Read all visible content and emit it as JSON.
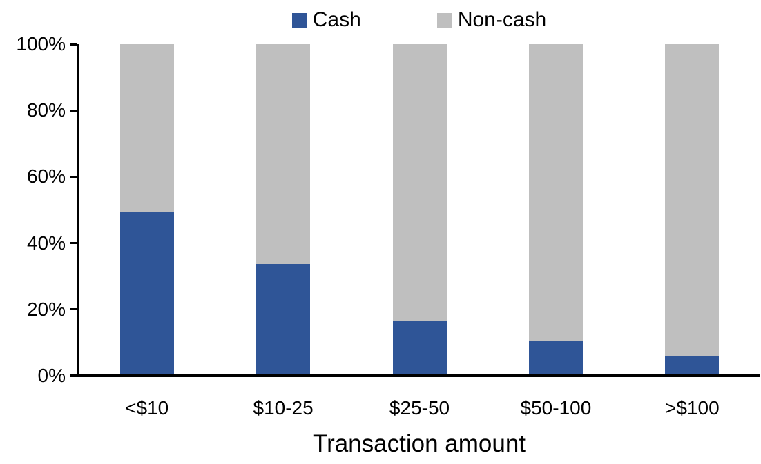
{
  "colors": {
    "cash": "#2F5597",
    "noncash": "#BFBFBF",
    "axis": "#000000",
    "background": "#FFFFFF",
    "text": "#000000"
  },
  "chart_data": {
    "type": "bar",
    "stacked": true,
    "orientation": "vertical",
    "title": "",
    "xlabel": "Transaction amount",
    "ylabel": "",
    "categories": [
      "<$10",
      "$10-25",
      "$25-50",
      "$50-100",
      ">$100"
    ],
    "series": [
      {
        "name": "Cash",
        "color": "#2F5597",
        "values": [
          49,
          33.5,
          16,
          10,
          5.5
        ]
      },
      {
        "name": "Non-cash",
        "color": "#BFBFBF",
        "values": [
          51,
          66.5,
          84,
          90,
          94.5
        ]
      }
    ],
    "ylim": [
      0,
      100
    ],
    "y_ticks": [
      "0%",
      "20%",
      "40%",
      "60%",
      "80%",
      "100%"
    ],
    "y_tick_format": "percent",
    "grid": false,
    "legend_position": "top"
  }
}
